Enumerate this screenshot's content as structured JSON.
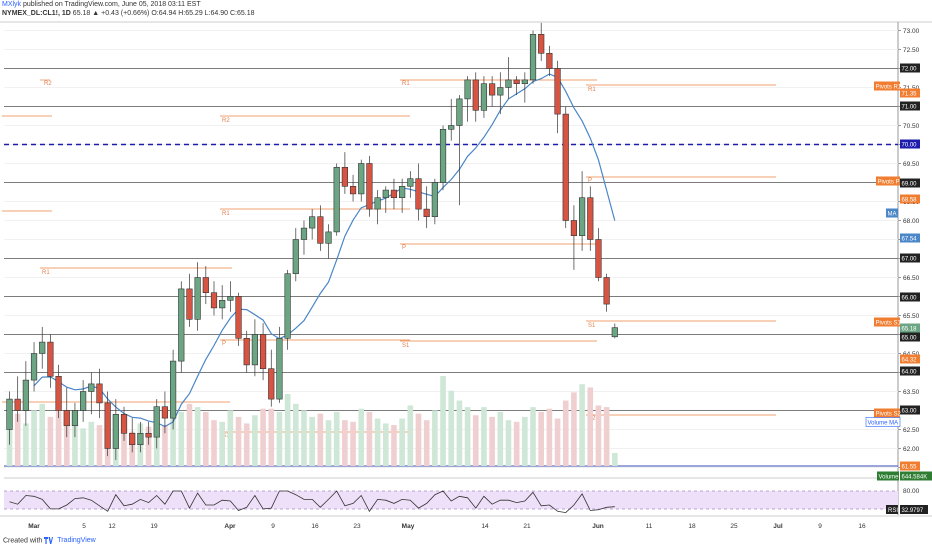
{
  "header": {
    "author": "MXlyk",
    "published": "published on TradingView.com, June 05, 2018 03:11 EST",
    "symbol": "NYMEX_DL:CL1!, 1D",
    "change": "65.18 ▲ +0.43 (+0.66%)",
    "ohlc": "O:64.94 H:65.29 L:64.90 C:65.18"
  },
  "footer": {
    "created_with": "Created with",
    "brand": "TradingView"
  },
  "colors": {
    "up": "#6ba583",
    "down": "#d75442",
    "ma": "#4a86c8",
    "pivot": "#f0a070",
    "blue_dashed": "#1c1cad",
    "volume_up": "#cfe7d6",
    "volume_down": "#efcfd0",
    "rsi_band": "#eee0f8",
    "rsi_line": "#333333"
  },
  "chart_data": {
    "type": "candlestick",
    "price_axis_ticks": [
      "73.00",
      "72.50",
      "72.00",
      "71.50",
      "71.00",
      "70.50",
      "70.00",
      "69.50",
      "69.00",
      "68.50",
      "68.00",
      "67.50",
      "67.00",
      "66.50",
      "66.00",
      "65.50",
      "65.00",
      "64.50",
      "64.00",
      "63.50",
      "63.00",
      "62.50",
      "62.00",
      "61.50"
    ],
    "x_axis_ticks": [
      "Mar",
      "5",
      "12",
      "19",
      "Apr",
      "9",
      "16",
      "23",
      "May",
      "14",
      "21",
      "Jun",
      "11",
      "18",
      "25",
      "Jul",
      "9",
      "16"
    ],
    "price_badges": [
      {
        "text": "72.00",
        "kind": "dark"
      },
      {
        "text": "Pivots R1",
        "kind": "orange"
      },
      {
        "text": "71.35",
        "kind": "orange"
      },
      {
        "text": "71.00",
        "kind": "dark"
      },
      {
        "text": "70.00",
        "kind": "blue"
      },
      {
        "text": "Pivots P",
        "kind": "orange"
      },
      {
        "text": "69.00",
        "kind": "dark"
      },
      {
        "text": "68.58",
        "kind": "orange"
      },
      {
        "text": "MA",
        "kind": "ma"
      },
      {
        "text": "67.54",
        "kind": "ma"
      },
      {
        "text": "67.00",
        "kind": "dark"
      },
      {
        "text": "66.00",
        "kind": "dark"
      },
      {
        "text": "Pivots S1",
        "kind": "orange"
      },
      {
        "text": "65.18",
        "kind": "green"
      },
      {
        "text": "65.00",
        "kind": "dark"
      },
      {
        "text": "64.32",
        "kind": "orange"
      },
      {
        "text": "64.00",
        "kind": "dark"
      },
      {
        "text": "63.00",
        "kind": "dark"
      },
      {
        "text": "Pivots S2",
        "kind": "orange"
      },
      {
        "text": "Volume MA",
        "kind": "volma"
      },
      {
        "text": "61.55",
        "kind": "orange"
      },
      {
        "text": "Volume",
        "kind": "vol"
      },
      {
        "text": "644.584K",
        "kind": "vol"
      }
    ],
    "rsi": {
      "label": "RSI",
      "value": "32.9797",
      "ticks": [
        "80.00",
        "50.00"
      ]
    },
    "horizontal_lines": [
      72.0,
      71.0,
      69.0,
      67.0,
      66.0,
      65.0,
      64.0,
      63.0
    ],
    "blue_dashed_level": 70.0,
    "pivot_labels": [
      "R2",
      "R1",
      "P",
      "S1",
      "S2"
    ],
    "candles": [
      {
        "o": 62.5,
        "h": 63.5,
        "l": 62.1,
        "c": 63.3
      },
      {
        "o": 63.3,
        "h": 63.9,
        "l": 62.7,
        "c": 63.0
      },
      {
        "o": 63.0,
        "h": 64.3,
        "l": 62.6,
        "c": 63.8
      },
      {
        "o": 63.8,
        "h": 64.8,
        "l": 63.5,
        "c": 64.5
      },
      {
        "o": 64.5,
        "h": 65.2,
        "l": 64.1,
        "c": 64.8
      },
      {
        "o": 64.8,
        "h": 65.0,
        "l": 63.6,
        "c": 63.9
      },
      {
        "o": 63.9,
        "h": 64.2,
        "l": 62.8,
        "c": 63.0
      },
      {
        "o": 63.0,
        "h": 63.6,
        "l": 62.3,
        "c": 62.6
      },
      {
        "o": 62.6,
        "h": 63.2,
        "l": 62.3,
        "c": 63.0
      },
      {
        "o": 63.0,
        "h": 63.8,
        "l": 62.7,
        "c": 63.5
      },
      {
        "o": 63.5,
        "h": 64.0,
        "l": 62.9,
        "c": 63.7
      },
      {
        "o": 63.7,
        "h": 64.1,
        "l": 62.8,
        "c": 63.2
      },
      {
        "o": 63.2,
        "h": 63.5,
        "l": 61.8,
        "c": 62.0
      },
      {
        "o": 62.0,
        "h": 63.3,
        "l": 61.7,
        "c": 62.9
      },
      {
        "o": 62.9,
        "h": 63.1,
        "l": 62.2,
        "c": 62.4
      },
      {
        "o": 62.4,
        "h": 62.8,
        "l": 61.9,
        "c": 62.1
      },
      {
        "o": 62.1,
        "h": 62.7,
        "l": 61.9,
        "c": 62.4
      },
      {
        "o": 62.4,
        "h": 62.7,
        "l": 62.1,
        "c": 62.3
      },
      {
        "o": 62.3,
        "h": 63.3,
        "l": 62.0,
        "c": 63.1
      },
      {
        "o": 63.1,
        "h": 63.5,
        "l": 62.4,
        "c": 62.8
      },
      {
        "o": 62.8,
        "h": 64.6,
        "l": 62.5,
        "c": 64.3
      },
      {
        "o": 64.3,
        "h": 66.4,
        "l": 64.0,
        "c": 66.2
      },
      {
        "o": 66.2,
        "h": 66.6,
        "l": 65.2,
        "c": 65.4
      },
      {
        "o": 65.4,
        "h": 66.9,
        "l": 65.1,
        "c": 66.5
      },
      {
        "o": 66.5,
        "h": 66.8,
        "l": 65.8,
        "c": 66.1
      },
      {
        "o": 66.1,
        "h": 66.4,
        "l": 65.5,
        "c": 65.7
      },
      {
        "o": 65.7,
        "h": 66.3,
        "l": 65.4,
        "c": 65.9
      },
      {
        "o": 65.9,
        "h": 66.4,
        "l": 65.6,
        "c": 66.0
      },
      {
        "o": 66.0,
        "h": 66.1,
        "l": 64.7,
        "c": 64.9
      },
      {
        "o": 64.9,
        "h": 65.1,
        "l": 64.0,
        "c": 64.2
      },
      {
        "o": 64.2,
        "h": 65.4,
        "l": 63.9,
        "c": 65.0
      },
      {
        "o": 65.0,
        "h": 65.3,
        "l": 63.8,
        "c": 64.1
      },
      {
        "o": 64.1,
        "h": 64.6,
        "l": 63.1,
        "c": 63.3
      },
      {
        "o": 63.3,
        "h": 65.2,
        "l": 63.2,
        "c": 64.9
      },
      {
        "o": 64.9,
        "h": 66.7,
        "l": 64.6,
        "c": 66.6
      },
      {
        "o": 66.6,
        "h": 67.8,
        "l": 66.4,
        "c": 67.5
      },
      {
        "o": 67.5,
        "h": 68.0,
        "l": 67.1,
        "c": 67.8
      },
      {
        "o": 67.8,
        "h": 68.3,
        "l": 67.5,
        "c": 68.1
      },
      {
        "o": 68.1,
        "h": 68.4,
        "l": 67.2,
        "c": 67.4
      },
      {
        "o": 67.4,
        "h": 67.9,
        "l": 67.0,
        "c": 67.7
      },
      {
        "o": 67.7,
        "h": 69.5,
        "l": 67.6,
        "c": 69.4
      },
      {
        "o": 69.4,
        "h": 69.8,
        "l": 68.7,
        "c": 68.9
      },
      {
        "o": 68.9,
        "h": 69.2,
        "l": 68.5,
        "c": 68.7
      },
      {
        "o": 68.7,
        "h": 69.6,
        "l": 68.5,
        "c": 69.5
      },
      {
        "o": 69.5,
        "h": 69.7,
        "l": 68.1,
        "c": 68.3
      },
      {
        "o": 68.3,
        "h": 68.8,
        "l": 67.9,
        "c": 68.6
      },
      {
        "o": 68.6,
        "h": 68.9,
        "l": 68.2,
        "c": 68.8
      },
      {
        "o": 68.8,
        "h": 69.1,
        "l": 68.3,
        "c": 68.6
      },
      {
        "o": 68.6,
        "h": 69.1,
        "l": 68.2,
        "c": 68.9
      },
      {
        "o": 68.9,
        "h": 69.3,
        "l": 68.6,
        "c": 69.1
      },
      {
        "o": 69.1,
        "h": 69.5,
        "l": 68.0,
        "c": 68.3
      },
      {
        "o": 68.3,
        "h": 68.9,
        "l": 67.8,
        "c": 68.1
      },
      {
        "o": 68.1,
        "h": 69.1,
        "l": 67.9,
        "c": 69.0
      },
      {
        "o": 69.0,
        "h": 70.5,
        "l": 68.8,
        "c": 70.4
      },
      {
        "o": 70.4,
        "h": 71.2,
        "l": 70.1,
        "c": 70.5
      },
      {
        "o": 70.5,
        "h": 71.3,
        "l": 68.4,
        "c": 71.2
      },
      {
        "o": 71.2,
        "h": 71.8,
        "l": 70.6,
        "c": 71.7
      },
      {
        "o": 71.7,
        "h": 71.9,
        "l": 70.6,
        "c": 70.9
      },
      {
        "o": 70.9,
        "h": 71.8,
        "l": 70.7,
        "c": 71.6
      },
      {
        "o": 71.6,
        "h": 71.8,
        "l": 71.0,
        "c": 71.3
      },
      {
        "o": 71.3,
        "h": 71.9,
        "l": 70.8,
        "c": 71.5
      },
      {
        "o": 71.5,
        "h": 72.3,
        "l": 71.2,
        "c": 71.7
      },
      {
        "o": 71.7,
        "h": 71.8,
        "l": 71.3,
        "c": 71.6
      },
      {
        "o": 71.6,
        "h": 71.9,
        "l": 71.1,
        "c": 71.7
      },
      {
        "o": 71.7,
        "h": 73.0,
        "l": 71.6,
        "c": 72.9
      },
      {
        "o": 72.9,
        "h": 73.2,
        "l": 72.2,
        "c": 72.4
      },
      {
        "o": 72.4,
        "h": 72.6,
        "l": 71.8,
        "c": 72.0
      },
      {
        "o": 72.0,
        "h": 72.2,
        "l": 70.3,
        "c": 70.8
      },
      {
        "o": 70.8,
        "h": 71.0,
        "l": 67.8,
        "c": 68.0
      },
      {
        "o": 68.0,
        "h": 68.4,
        "l": 66.7,
        "c": 67.6
      },
      {
        "o": 67.6,
        "h": 69.3,
        "l": 67.2,
        "c": 68.6
      },
      {
        "o": 68.6,
        "h": 68.9,
        "l": 67.2,
        "c": 67.5
      },
      {
        "o": 67.5,
        "h": 67.8,
        "l": 66.4,
        "c": 66.5
      },
      {
        "o": 66.5,
        "h": 66.6,
        "l": 65.6,
        "c": 65.8
      },
      {
        "o": 64.94,
        "h": 65.29,
        "l": 64.9,
        "c": 65.18
      }
    ],
    "volume": [
      300,
      320,
      260,
      340,
      380,
      300,
      350,
      330,
      260,
      230,
      270,
      250,
      290,
      250,
      230,
      210,
      260,
      240,
      230,
      250,
      300,
      330,
      380,
      360,
      330,
      280,
      270,
      340,
      300,
      260,
      310,
      350,
      350,
      330,
      440,
      380,
      340,
      300,
      320,
      280,
      330,
      280,
      270,
      350,
      330,
      290,
      260,
      250,
      290,
      370,
      320,
      280,
      340,
      550,
      460,
      400,
      360,
      310,
      360,
      300,
      330,
      280,
      270,
      300,
      360,
      330,
      350,
      290,
      400,
      450,
      500,
      480,
      370,
      360,
      80
    ]
  }
}
